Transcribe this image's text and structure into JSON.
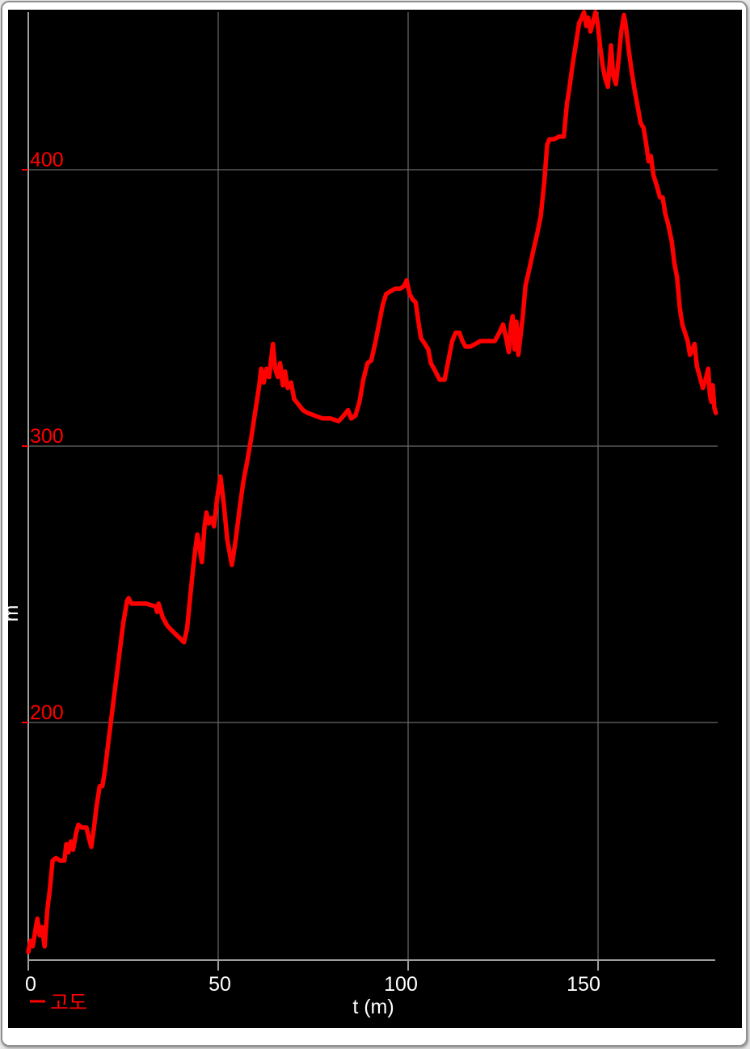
{
  "window": {
    "frame_background": "#ffffff",
    "frame_border_color": "#8f8f8f"
  },
  "chart_data": {
    "type": "line",
    "title": "",
    "xlabel": "t (m)",
    "ylabel": "m",
    "xlim": [
      0,
      181
    ],
    "ylim": [
      114,
      457
    ],
    "grid": true,
    "legend_position": "bottom-left",
    "background_color": "#000000",
    "grid_color": "#6a6a6a",
    "axis_color": "#9e9e9e",
    "x_tick_label_color": "#ffffff",
    "y_tick_label_color": "#ff0000",
    "axis_title_color": "#ffffff",
    "xticks": [
      {
        "value": 0,
        "label": "0"
      },
      {
        "value": 50,
        "label": "50"
      },
      {
        "value": 100,
        "label": "100"
      },
      {
        "value": 150,
        "label": "150"
      }
    ],
    "yticks": [
      {
        "value": 400,
        "label": "400"
      },
      {
        "value": 300,
        "label": "300"
      },
      {
        "value": 200,
        "label": "200"
      }
    ],
    "legend": [
      {
        "label": "고도",
        "color": "#ff0000"
      }
    ],
    "series": [
      {
        "name": "고도",
        "color": "#ff0000",
        "points": [
          [
            0,
            117
          ],
          [
            0.6,
            121
          ],
          [
            1.2,
            119
          ],
          [
            2,
            126
          ],
          [
            2.4,
            129
          ],
          [
            3,
            123
          ],
          [
            3.6,
            126
          ],
          [
            4.3,
            119
          ],
          [
            5,
            132
          ],
          [
            5.7,
            140
          ],
          [
            6.4,
            150
          ],
          [
            7.3,
            151
          ],
          [
            8.4,
            150
          ],
          [
            9.5,
            150
          ],
          [
            10,
            156
          ],
          [
            10.6,
            153
          ],
          [
            11.2,
            157
          ],
          [
            11.8,
            154
          ],
          [
            12.6,
            160
          ],
          [
            13.2,
            163
          ],
          [
            14.1,
            162
          ],
          [
            15.3,
            162
          ],
          [
            16,
            158
          ],
          [
            16.6,
            155
          ],
          [
            17.3,
            162
          ],
          [
            18,
            170
          ],
          [
            18.8,
            177
          ],
          [
            19.5,
            177
          ],
          [
            20.1,
            182
          ],
          [
            21,
            192
          ],
          [
            22,
            203
          ],
          [
            23,
            214
          ],
          [
            24,
            225
          ],
          [
            25,
            236
          ],
          [
            26,
            244
          ],
          [
            26.4,
            245
          ],
          [
            27.2,
            243
          ],
          [
            29,
            243
          ],
          [
            31,
            243
          ],
          [
            33.5,
            242
          ],
          [
            33.9,
            240
          ],
          [
            34.3,
            243
          ],
          [
            35.4,
            238
          ],
          [
            36.6,
            235
          ],
          [
            38,
            233
          ],
          [
            39.5,
            231
          ],
          [
            41,
            229
          ],
          [
            41.8,
            234
          ],
          [
            42.6,
            245
          ],
          [
            43.4,
            256
          ],
          [
            44,
            263
          ],
          [
            44.5,
            268
          ],
          [
            45.1,
            263
          ],
          [
            45.7,
            258
          ],
          [
            46.4,
            271
          ],
          [
            46.9,
            276
          ],
          [
            47.5,
            272
          ],
          [
            48.2,
            274
          ],
          [
            48.9,
            271
          ],
          [
            49.7,
            281
          ],
          [
            50.6,
            289
          ],
          [
            51.4,
            280
          ],
          [
            52.4,
            266
          ],
          [
            53.6,
            257
          ],
          [
            54.6,
            266
          ],
          [
            55.6,
            277
          ],
          [
            56.6,
            287
          ],
          [
            57.7,
            295
          ],
          [
            58.7,
            303
          ],
          [
            59.8,
            313
          ],
          [
            60.8,
            322
          ],
          [
            61.3,
            328
          ],
          [
            62,
            323
          ],
          [
            62.7,
            328
          ],
          [
            63.4,
            325
          ],
          [
            64.4,
            337
          ],
          [
            65,
            328
          ],
          [
            65.7,
            325
          ],
          [
            66.3,
            330
          ],
          [
            67,
            322
          ],
          [
            67.6,
            327
          ],
          [
            68.3,
            321
          ],
          [
            69.2,
            323
          ],
          [
            70,
            317
          ],
          [
            71.2,
            315
          ],
          [
            72.3,
            313
          ],
          [
            73.6,
            312
          ],
          [
            75.5,
            311
          ],
          [
            77.5,
            310
          ],
          [
            79.6,
            310
          ],
          [
            81.7,
            309
          ],
          [
            83,
            311
          ],
          [
            84.2,
            313
          ],
          [
            85,
            310
          ],
          [
            86.1,
            311
          ],
          [
            87.2,
            316
          ],
          [
            88.2,
            324
          ],
          [
            89.3,
            330
          ],
          [
            90.3,
            331
          ],
          [
            91.3,
            337
          ],
          [
            92.3,
            344
          ],
          [
            93.3,
            351
          ],
          [
            94.2,
            355
          ],
          [
            95.3,
            356
          ],
          [
            96.7,
            357
          ],
          [
            98,
            357
          ],
          [
            99,
            358
          ],
          [
            99.6,
            360
          ],
          [
            100.4,
            355
          ],
          [
            101.2,
            353
          ],
          [
            102,
            352
          ],
          [
            102.7,
            345
          ],
          [
            103.4,
            339
          ],
          [
            104.4,
            337
          ],
          [
            105.3,
            335
          ],
          [
            106,
            330
          ],
          [
            107.2,
            327
          ],
          [
            108.3,
            324
          ],
          [
            109.6,
            324
          ],
          [
            110.6,
            331
          ],
          [
            111.6,
            338
          ],
          [
            112.5,
            341
          ],
          [
            113.5,
            341
          ],
          [
            114.3,
            338
          ],
          [
            115.1,
            336
          ],
          [
            116.4,
            336
          ],
          [
            117.7,
            337
          ],
          [
            119,
            338
          ],
          [
            120.4,
            338
          ],
          [
            121.7,
            338
          ],
          [
            122.8,
            338
          ],
          [
            124,
            341
          ],
          [
            125,
            344
          ],
          [
            125.8,
            339
          ],
          [
            126.5,
            334
          ],
          [
            127.1,
            344
          ],
          [
            127.5,
            347
          ],
          [
            128,
            335
          ],
          [
            128.5,
            345
          ],
          [
            129,
            333
          ],
          [
            129.6,
            340
          ],
          [
            130.2,
            347
          ],
          [
            130.9,
            358
          ],
          [
            131.9,
            364
          ],
          [
            133,
            371
          ],
          [
            134,
            377
          ],
          [
            134.9,
            383
          ],
          [
            135.8,
            395
          ],
          [
            136.6,
            409
          ],
          [
            137.2,
            411
          ],
          [
            138.4,
            411
          ],
          [
            139.7,
            412
          ],
          [
            141,
            412
          ],
          [
            141.8,
            424
          ],
          [
            142.4,
            429
          ],
          [
            143.2,
            437
          ],
          [
            144.1,
            445
          ],
          [
            145,
            453
          ],
          [
            145.7,
            455
          ],
          [
            146.3,
            457
          ],
          [
            146.9,
            452
          ],
          [
            147.4,
            455
          ],
          [
            148,
            450
          ],
          [
            148.6,
            453
          ],
          [
            149.3,
            457
          ],
          [
            149.9,
            453
          ],
          [
            150.6,
            444
          ],
          [
            151.3,
            437
          ],
          [
            151.9,
            433
          ],
          [
            152.6,
            430
          ],
          [
            153.4,
            445
          ],
          [
            154,
            434
          ],
          [
            154.7,
            431
          ],
          [
            155.4,
            440
          ],
          [
            156.1,
            450
          ],
          [
            156.8,
            456
          ],
          [
            157.4,
            451
          ],
          [
            158.1,
            443
          ],
          [
            158.8,
            436
          ],
          [
            159.6,
            429
          ],
          [
            160.4,
            423
          ],
          [
            161.2,
            417
          ],
          [
            162,
            415
          ],
          [
            162.7,
            409
          ],
          [
            163.3,
            403
          ],
          [
            163.9,
            405
          ],
          [
            164.6,
            398
          ],
          [
            165.5,
            394
          ],
          [
            166.3,
            390
          ],
          [
            167,
            390
          ],
          [
            167.7,
            384
          ],
          [
            168.5,
            380
          ],
          [
            169.4,
            374
          ],
          [
            170.1,
            366
          ],
          [
            170.8,
            361
          ],
          [
            171.5,
            350
          ],
          [
            172.2,
            344
          ],
          [
            172.9,
            341
          ],
          [
            173.6,
            338
          ],
          [
            174.2,
            333
          ],
          [
            174.8,
            335
          ],
          [
            175.4,
            337
          ],
          [
            176,
            329
          ],
          [
            176.8,
            325
          ],
          [
            177.6,
            321
          ],
          [
            178.3,
            324
          ],
          [
            179,
            328
          ],
          [
            179.4,
            319
          ],
          [
            179.8,
            316
          ],
          [
            180.2,
            322
          ],
          [
            180.6,
            314
          ],
          [
            181,
            312
          ]
        ]
      }
    ]
  }
}
